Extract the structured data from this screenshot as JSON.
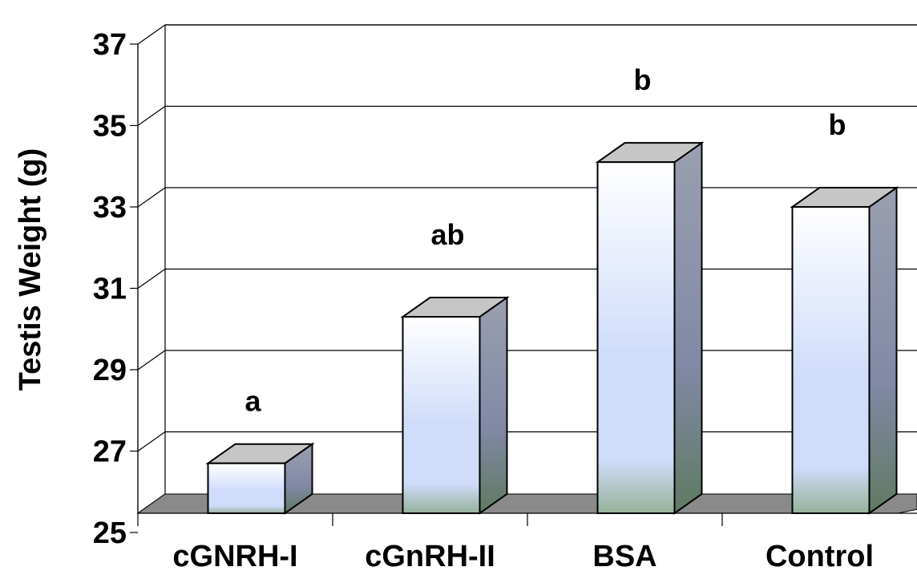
{
  "chart_data": {
    "type": "bar",
    "title": "",
    "xlabel": "",
    "ylabel": "Testis Weight (g)",
    "ylim": [
      25,
      37
    ],
    "yticks": [
      25,
      27,
      29,
      31,
      33,
      35,
      37
    ],
    "grid": true,
    "style": "3d-column",
    "categories": [
      "cGNRH-I",
      "cGnRH-II",
      "BSA",
      "Control"
    ],
    "values": [
      26.7,
      30.3,
      34.1,
      33.0
    ],
    "significance_labels": [
      "a",
      "ab",
      "b",
      "b"
    ],
    "colors": {
      "bar_front_top": "#ffffff",
      "bar_front_mid": "#cfdcfa",
      "bar_front_bottom": "#96b29a",
      "bar_side": "#8189a6",
      "bar_top": "#c6c6c6",
      "floor": "#8a8a8a",
      "grid": "#000000"
    }
  }
}
